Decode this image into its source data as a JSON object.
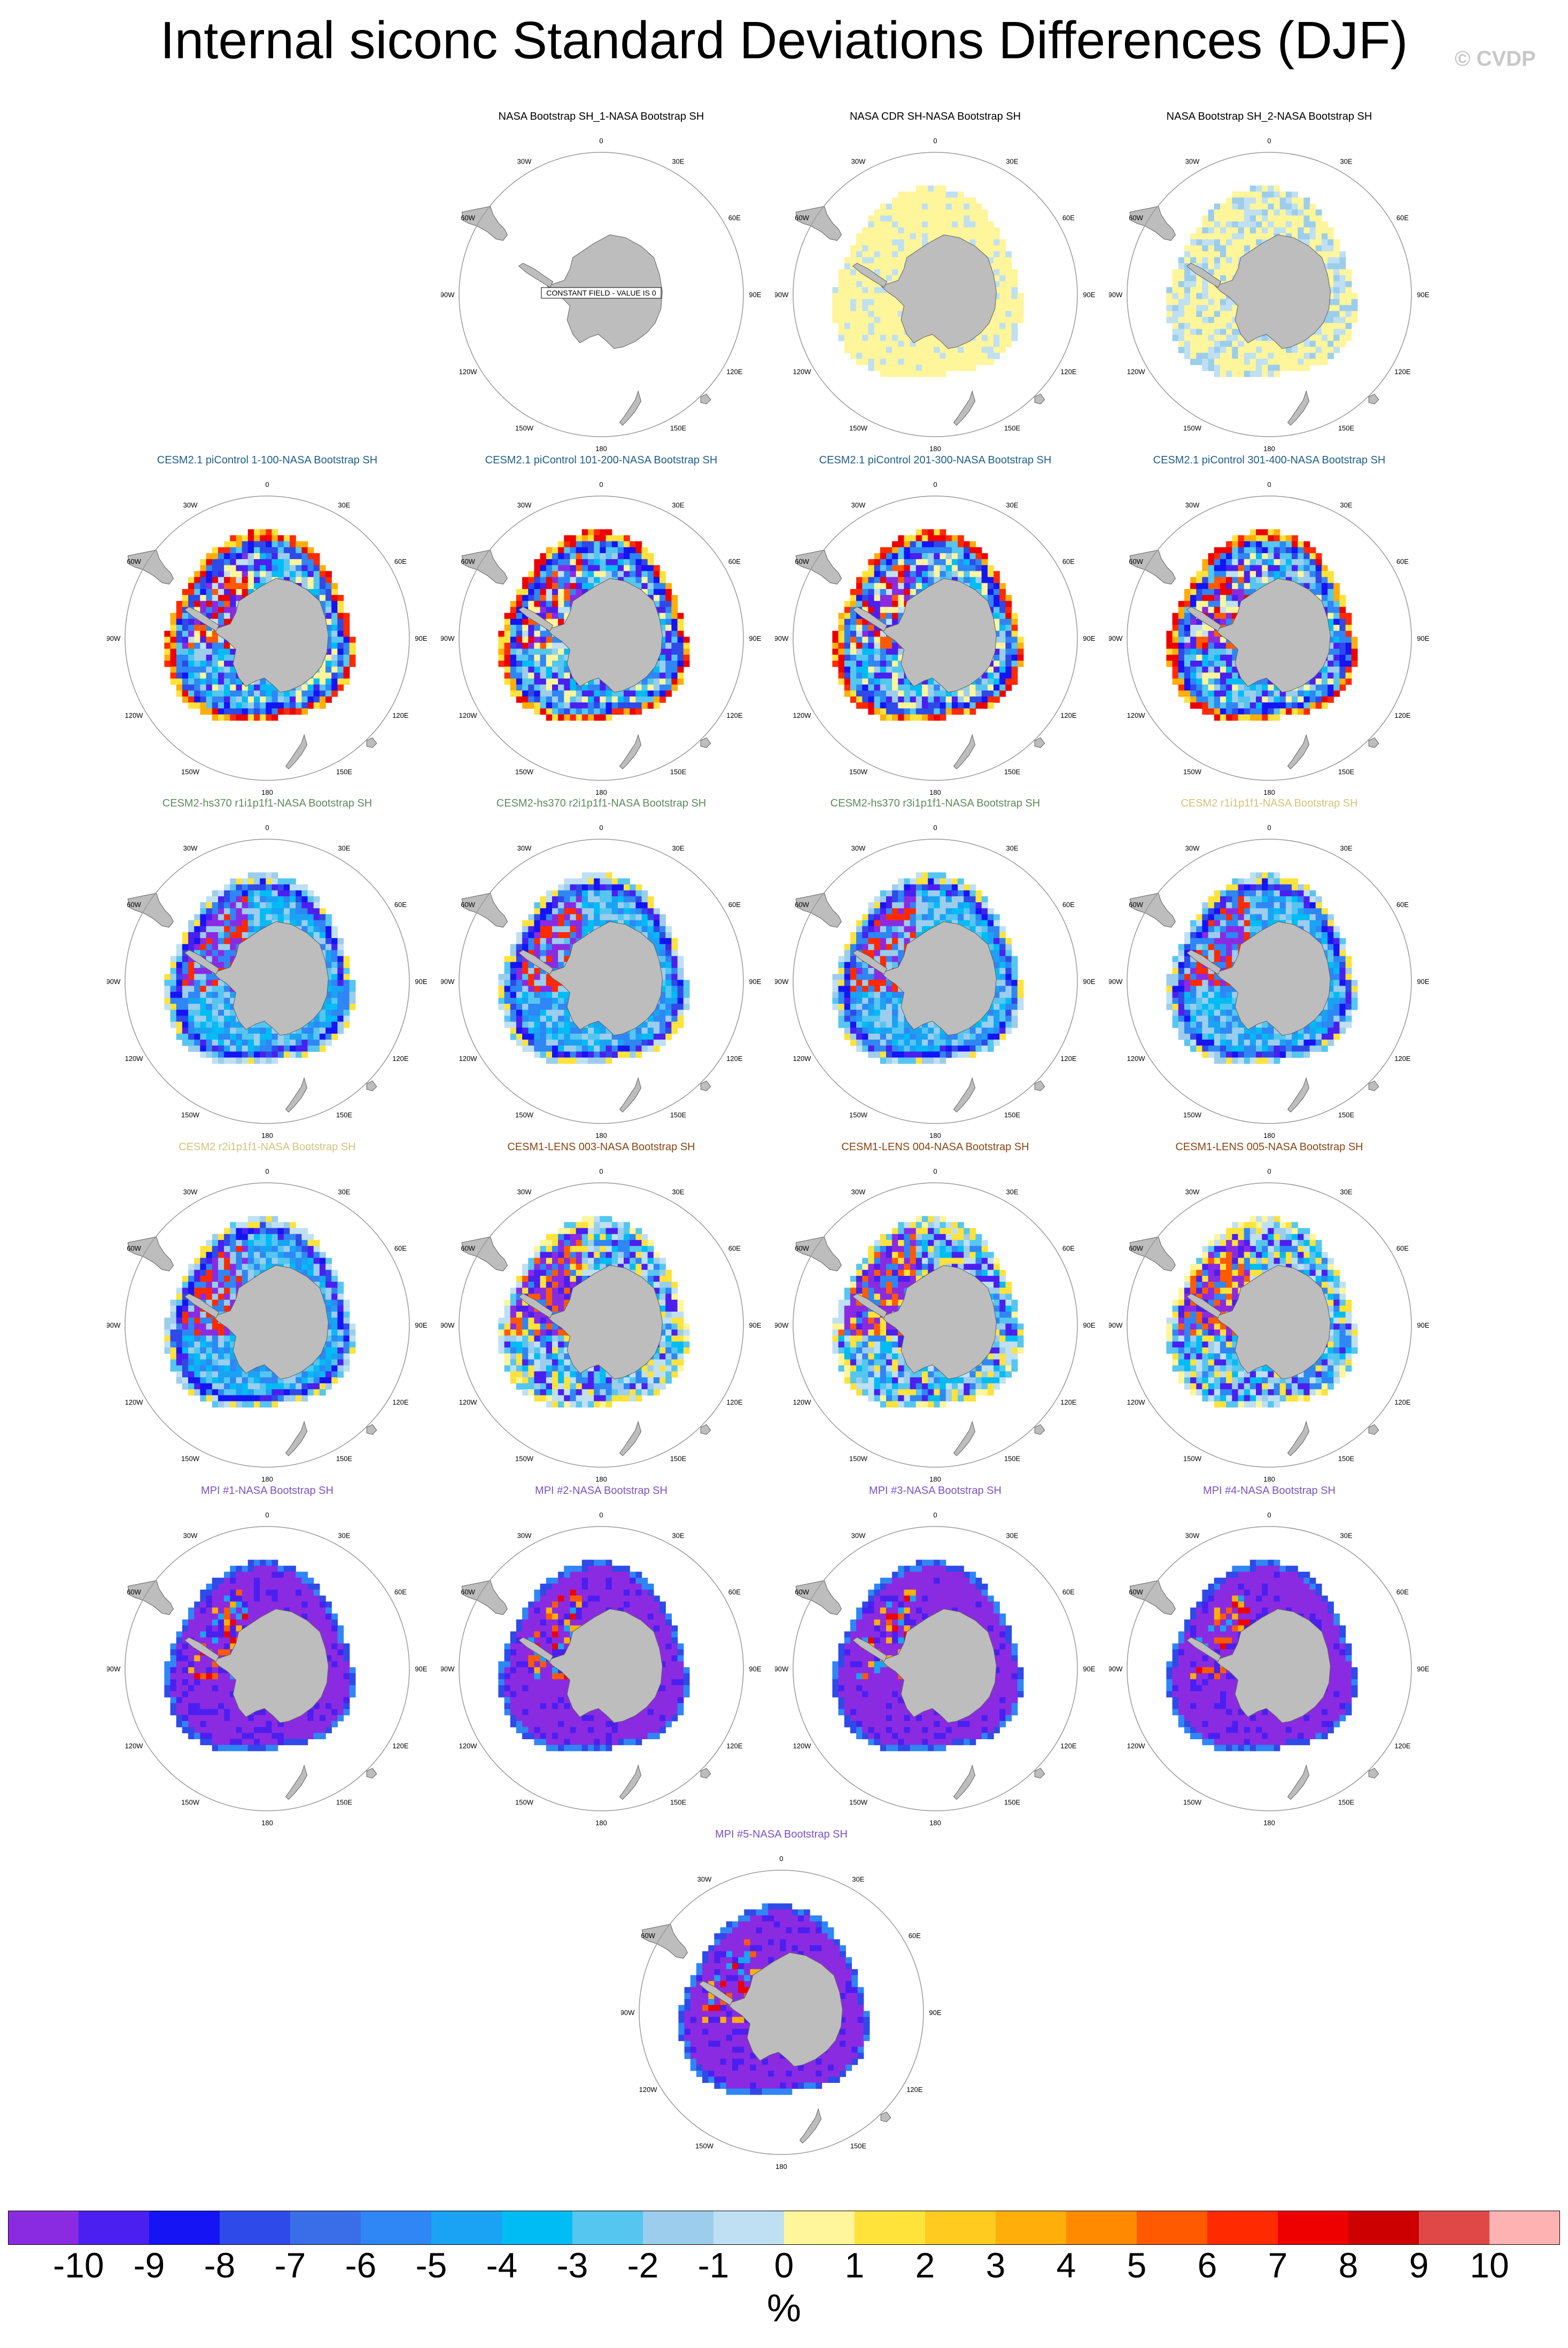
{
  "title": "Internal siconc Standard Deviations Differences (DJF)",
  "copyright": "© CVDP",
  "colors": {
    "land": "#bdbdbd",
    "land_edge": "#606060",
    "circle": "#9a9a9a",
    "title_obs": "#000000",
    "title_cesm21": "#1f5f8b",
    "title_hs370": "#5e8a5e",
    "title_cesm2": "#d6c27a",
    "title_lens": "#8b4513",
    "title_mpi": "#7b52c7"
  },
  "lon_labels": [
    "0",
    "30E",
    "60E",
    "90E",
    "120E",
    "150E",
    "180",
    "150W",
    "120W",
    "90W",
    "60W",
    "30W"
  ],
  "constant_field_label": "CONSTANT FIELD - VALUE IS 0",
  "chart_data": {
    "type": "heatmap",
    "projection": "south polar stereographic",
    "variable": "siconc",
    "season": "DJF",
    "units": "%",
    "levels": [
      -10,
      -9,
      -8,
      -7,
      -6,
      -5,
      -4,
      -3,
      -2,
      -1,
      0,
      1,
      2,
      3,
      4,
      5,
      6,
      7,
      8,
      9,
      10
    ],
    "level_labels": [
      "-10",
      "-9",
      "-8",
      "-7",
      "-6",
      "-5",
      "-4",
      "-3",
      "-2",
      "-1",
      "0",
      "1",
      "2",
      "3",
      "4",
      "5",
      "6",
      "7",
      "8",
      "9",
      "10"
    ],
    "palette": [
      "#8a2be2",
      "#4b1ff0",
      "#1414f5",
      "#2e4ae8",
      "#3a6ee8",
      "#2f86f5",
      "#1aa3f5",
      "#00bcf5",
      "#55c6f0",
      "#9ccdec",
      "#bfe0f2",
      "#fff59a",
      "#ffe23a",
      "#ffcb1f",
      "#ffae0a",
      "#ff8a00",
      "#ff5a00",
      "#ff2a00",
      "#ee0000",
      "#cc0000",
      "#e04848",
      "#ffb2b2"
    ],
    "panels": [
      {
        "title": "NASA Bootstrap SH_1-NASA Bootstrap SH",
        "group": "obs",
        "pattern": "constant"
      },
      {
        "title": "NASA CDR SH-NASA Bootstrap SH",
        "group": "obs",
        "pattern": "cdr"
      },
      {
        "title": "NASA Bootstrap SH_2-NASA Bootstrap SH",
        "group": "obs",
        "pattern": "bootstrap2"
      },
      {
        "title": "CESM2.1 piControl 1-100-NASA Bootstrap SH",
        "group": "cesm21",
        "pattern": "cesm21"
      },
      {
        "title": "CESM2.1 piControl 101-200-NASA Bootstrap SH",
        "group": "cesm21",
        "pattern": "cesm21"
      },
      {
        "title": "CESM2.1 piControl 201-300-NASA Bootstrap SH",
        "group": "cesm21",
        "pattern": "cesm21"
      },
      {
        "title": "CESM2.1 piControl 301-400-NASA Bootstrap SH",
        "group": "cesm21",
        "pattern": "cesm21"
      },
      {
        "title": "CESM2-hs370 r1i1p1f1-NASA Bootstrap SH",
        "group": "hs370",
        "pattern": "cesm2"
      },
      {
        "title": "CESM2-hs370 r2i1p1f1-NASA Bootstrap SH",
        "group": "hs370",
        "pattern": "cesm2"
      },
      {
        "title": "CESM2-hs370 r3i1p1f1-NASA Bootstrap SH",
        "group": "hs370",
        "pattern": "cesm2"
      },
      {
        "title": "CESM2 r1i1p1f1-NASA Bootstrap SH",
        "group": "cesm2",
        "pattern": "cesm2"
      },
      {
        "title": "CESM2 r2i1p1f1-NASA Bootstrap SH",
        "group": "cesm2",
        "pattern": "cesm2"
      },
      {
        "title": "CESM1-LENS 003-NASA Bootstrap SH",
        "group": "lens",
        "pattern": "lens"
      },
      {
        "title": "CESM1-LENS 004-NASA Bootstrap SH",
        "group": "lens",
        "pattern": "lens"
      },
      {
        "title": "CESM1-LENS 005-NASA Bootstrap SH",
        "group": "lens",
        "pattern": "lens"
      },
      {
        "title": "MPI #1-NASA Bootstrap SH",
        "group": "mpi",
        "pattern": "mpi"
      },
      {
        "title": "MPI #2-NASA Bootstrap SH",
        "group": "mpi",
        "pattern": "mpi"
      },
      {
        "title": "MPI #3-NASA Bootstrap SH",
        "group": "mpi",
        "pattern": "mpi"
      },
      {
        "title": "MPI #4-NASA Bootstrap SH",
        "group": "mpi",
        "pattern": "mpi"
      },
      {
        "title": "MPI #5-NASA Bootstrap SH",
        "group": "mpi",
        "pattern": "mpi"
      }
    ]
  }
}
